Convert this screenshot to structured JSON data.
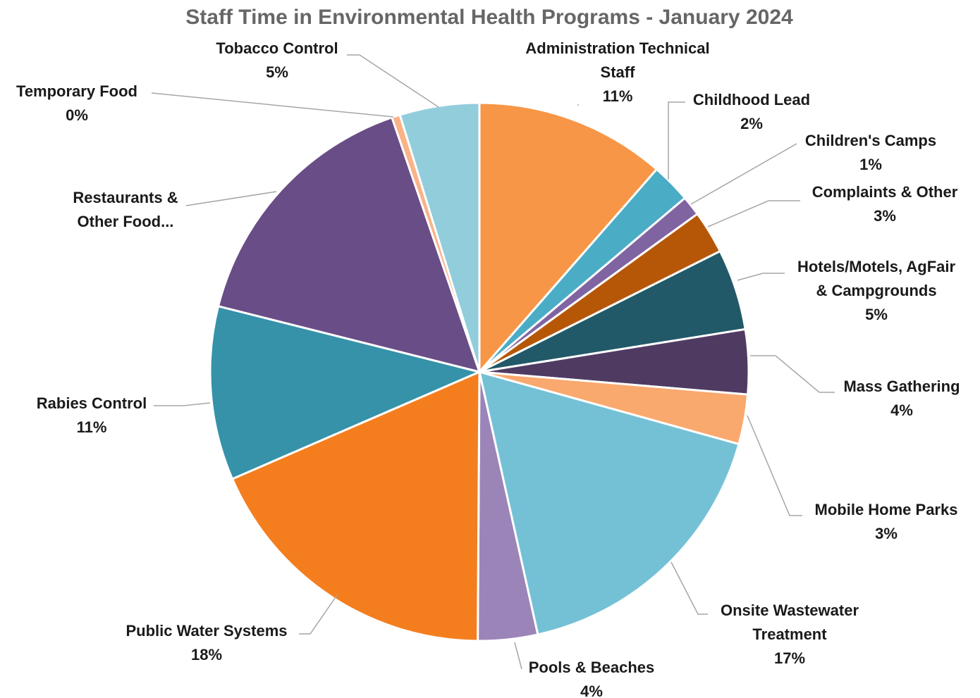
{
  "chart_data": {
    "type": "pie",
    "title": "Staff Time in Environmental Health Programs - January 2024",
    "slices": [
      {
        "label": "Administration Technical Staff",
        "percent_label": "11%",
        "value": 11.5,
        "color": "#f79646"
      },
      {
        "label": "Childhood Lead",
        "percent_label": "2%",
        "value": 2.4,
        "color": "#4bacc6"
      },
      {
        "label": "Children's Camps",
        "percent_label": "1%",
        "value": 1.2,
        "color": "#8064a2"
      },
      {
        "label": "Complaints & Other",
        "percent_label": "3%",
        "value": 2.6,
        "color": "#b65708"
      },
      {
        "label": "Hotels/Motels, AgFair & Campgrounds",
        "percent_label": "5%",
        "value": 4.9,
        "color": "#215968"
      },
      {
        "label": "Mass Gathering",
        "percent_label": "4%",
        "value": 3.9,
        "color": "#4f3b62"
      },
      {
        "label": "Mobile Home Parks",
        "percent_label": "3%",
        "value": 3.0,
        "color": "#f9a86e"
      },
      {
        "label": "Onsite Wastewater Treatment",
        "percent_label": "17%",
        "value": 17.3,
        "color": "#74c1d6"
      },
      {
        "label": "Pools & Beaches",
        "percent_label": "4%",
        "value": 3.6,
        "color": "#9b85b8"
      },
      {
        "label": "Public Water Systems",
        "percent_label": "18%",
        "value": 18.5,
        "color": "#f47e1e"
      },
      {
        "label": "Rabies Control",
        "percent_label": "11%",
        "value": 10.5,
        "color": "#3592a8"
      },
      {
        "label": "Restaurants & Other Food...",
        "percent_label": "16%",
        "value": 15.9,
        "color": "#684d86"
      },
      {
        "label": "Temporary Food",
        "percent_label": "0%",
        "value": 0.5,
        "color": "#fab287"
      },
      {
        "label": "Tobacco Control",
        "percent_label": "5%",
        "value": 4.8,
        "color": "#92cddc"
      }
    ]
  }
}
